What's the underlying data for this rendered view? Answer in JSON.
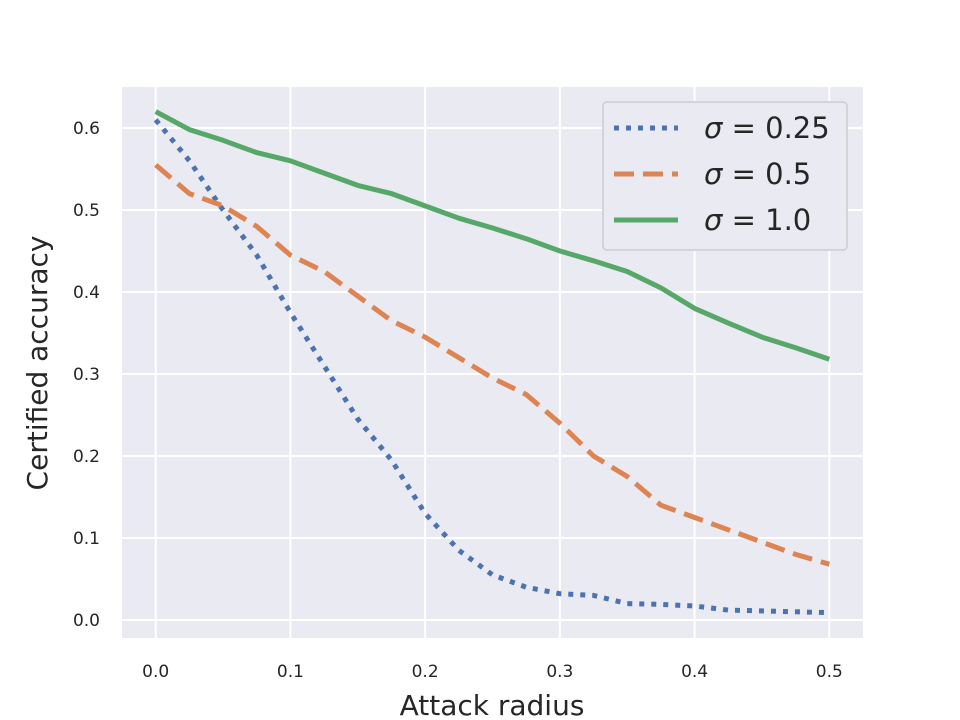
{
  "chart_data": {
    "type": "line",
    "xlabel": "Attack radius",
    "ylabel": "Certified accuracy",
    "xlim": [
      -0.025,
      0.525
    ],
    "ylim": [
      -0.022,
      0.65
    ],
    "xticks": [
      0.0,
      0.1,
      0.2,
      0.3,
      0.4,
      0.5
    ],
    "xtick_labels": [
      "0.0",
      "0.1",
      "0.2",
      "0.3",
      "0.4",
      "0.5"
    ],
    "yticks": [
      0.0,
      0.1,
      0.2,
      0.3,
      0.4,
      0.5,
      0.6
    ],
    "ytick_labels": [
      "0.0",
      "0.1",
      "0.2",
      "0.3",
      "0.4",
      "0.5",
      "0.6"
    ],
    "grid": true,
    "background": "#eaeaf2",
    "legend_position": "top-right",
    "series": [
      {
        "name": "σ = 0.25",
        "symbol": "σ",
        "label_rest": " = 0.25",
        "style": "dotted",
        "color": "#4c72b0",
        "x": [
          0.0,
          0.025,
          0.05,
          0.075,
          0.1,
          0.125,
          0.15,
          0.175,
          0.2,
          0.225,
          0.25,
          0.275,
          0.3,
          0.325,
          0.35,
          0.375,
          0.4,
          0.425,
          0.45,
          0.475,
          0.5
        ],
        "y": [
          0.61,
          0.56,
          0.5,
          0.445,
          0.375,
          0.31,
          0.245,
          0.195,
          0.13,
          0.085,
          0.055,
          0.04,
          0.032,
          0.03,
          0.02,
          0.019,
          0.017,
          0.012,
          0.011,
          0.01,
          0.009
        ]
      },
      {
        "name": "σ = 0.5",
        "symbol": "σ",
        "label_rest": " = 0.5",
        "style": "dashed",
        "color": "#dd8452",
        "x": [
          0.0,
          0.025,
          0.05,
          0.075,
          0.1,
          0.125,
          0.15,
          0.175,
          0.2,
          0.225,
          0.25,
          0.275,
          0.3,
          0.325,
          0.35,
          0.375,
          0.4,
          0.425,
          0.45,
          0.475,
          0.5
        ],
        "y": [
          0.555,
          0.52,
          0.505,
          0.48,
          0.445,
          0.425,
          0.395,
          0.365,
          0.345,
          0.32,
          0.295,
          0.275,
          0.24,
          0.2,
          0.175,
          0.14,
          0.125,
          0.11,
          0.095,
          0.08,
          0.068
        ]
      },
      {
        "name": "σ = 1.0",
        "symbol": "σ",
        "label_rest": " = 1.0",
        "style": "solid",
        "color": "#55a868",
        "x": [
          0.0,
          0.025,
          0.05,
          0.075,
          0.1,
          0.125,
          0.15,
          0.175,
          0.2,
          0.225,
          0.25,
          0.275,
          0.3,
          0.325,
          0.35,
          0.375,
          0.4,
          0.425,
          0.45,
          0.475,
          0.5
        ],
        "y": [
          0.62,
          0.598,
          0.585,
          0.57,
          0.56,
          0.545,
          0.53,
          0.52,
          0.505,
          0.49,
          0.478,
          0.465,
          0.45,
          0.438,
          0.425,
          0.405,
          0.38,
          0.362,
          0.345,
          0.332,
          0.318
        ]
      }
    ]
  }
}
